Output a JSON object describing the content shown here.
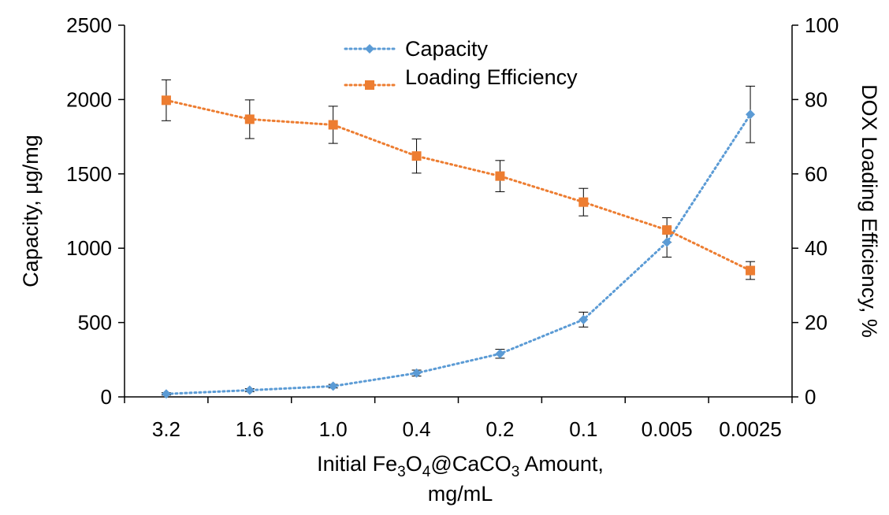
{
  "chart_data": {
    "type": "line",
    "categories": [
      "3.2",
      "1.6",
      "1.0",
      "0.4",
      "0.2",
      "0.1",
      "0.005",
      "0.0025"
    ],
    "x_title_line1": "Initial Fe",
    "x_title_sub1": "3",
    "x_title_mid1": "O",
    "x_title_sub2": "4",
    "x_title_mid2": "@CaCO",
    "x_title_sub3": "3",
    "x_title_end": " Amount,",
    "x_title_line2": "mg/mL",
    "y_left_title": "Capacity, µg/mg",
    "y_right_title": "DOX Loading Efficiency, %",
    "y_left_lim": [
      0,
      2500
    ],
    "y_left_ticks": [
      "0",
      "500",
      "1000",
      "1500",
      "2000",
      "2500"
    ],
    "y_right_lim": [
      0,
      100
    ],
    "y_right_ticks": [
      "0",
      "20",
      "40",
      "60",
      "80",
      "100"
    ],
    "legend_position": "top-center",
    "series": [
      {
        "name": "Capacity",
        "axis": "left",
        "color": "#5b9bd5",
        "marker": "diamond",
        "values": [
          20,
          45,
          72,
          160,
          290,
          520,
          1040,
          1900
        ],
        "errors": [
          8,
          10,
          12,
          20,
          30,
          50,
          100,
          190
        ]
      },
      {
        "name": "Loading Efficiency",
        "axis": "right",
        "color": "#ed7d31",
        "marker": "square",
        "values": [
          79.8,
          74.7,
          73.2,
          64.8,
          59.4,
          52.4,
          44.9,
          34.0
        ],
        "errors": [
          5.5,
          5.2,
          5.0,
          4.6,
          4.2,
          3.7,
          3.3,
          2.4
        ]
      }
    ]
  }
}
